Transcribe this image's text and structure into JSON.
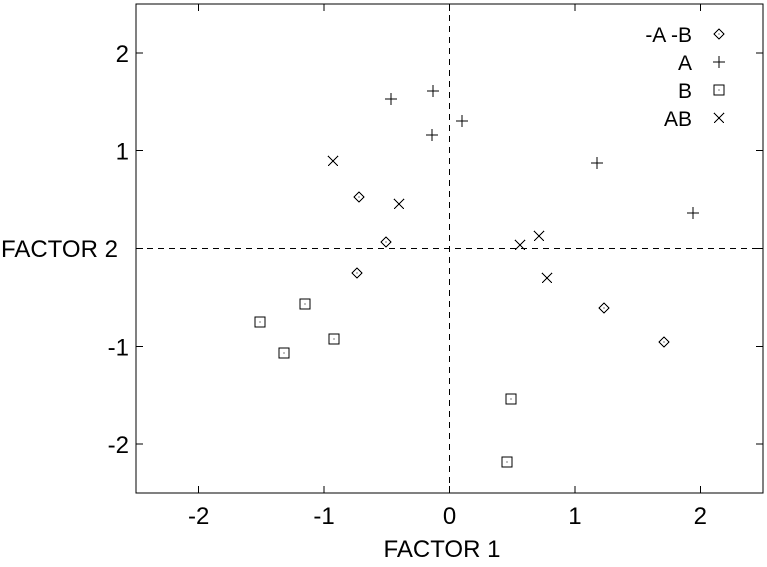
{
  "figure": {
    "background": "#ffffff",
    "foreground": "#000000"
  },
  "chart_data": {
    "type": "scatter",
    "title": "",
    "xlabel": "FACTOR 1",
    "ylabel": "FACTOR 2",
    "xlim": [
      -2.5,
      2.5
    ],
    "ylim": [
      -2.5,
      2.5
    ],
    "grid": false,
    "zero_lines": "dashed",
    "tick_style": "inward-mirrored-all-borders",
    "legend_position": "top-right-inside",
    "x_ticks": [
      {
        "value": -2,
        "label": "-2"
      },
      {
        "value": -1,
        "label": "-1"
      },
      {
        "value": 0,
        "label": "0"
      },
      {
        "value": 1,
        "label": "1"
      },
      {
        "value": 2,
        "label": "2"
      }
    ],
    "y_ticks": [
      {
        "value": -2,
        "label": "-2"
      },
      {
        "value": -1,
        "label": "-1"
      },
      {
        "value": 0,
        "label": ""
      },
      {
        "value": 1,
        "label": "1"
      },
      {
        "value": 2,
        "label": "2"
      }
    ],
    "series": [
      {
        "name": "-A -B",
        "marker": "diamond-dot",
        "points": [
          [
            -0.72,
            0.53
          ],
          [
            -0.51,
            0.07
          ],
          [
            -0.74,
            -0.25
          ],
          [
            1.23,
            -0.61
          ],
          [
            1.71,
            -0.96
          ]
        ]
      },
      {
        "name": "A",
        "marker": "plus",
        "points": [
          [
            -0.47,
            1.53
          ],
          [
            -0.13,
            1.61
          ],
          [
            -0.14,
            1.16
          ],
          [
            0.1,
            1.3
          ],
          [
            1.18,
            0.87
          ],
          [
            1.94,
            0.36
          ]
        ]
      },
      {
        "name": "B",
        "marker": "square-dot",
        "points": [
          [
            -1.15,
            -0.57
          ],
          [
            -1.51,
            -0.75
          ],
          [
            -0.92,
            -0.93
          ],
          [
            -1.32,
            -1.07
          ],
          [
            0.49,
            -1.54
          ],
          [
            0.46,
            -2.18
          ]
        ]
      },
      {
        "name": "AB",
        "marker": "cross",
        "points": [
          [
            -0.93,
            0.89
          ],
          [
            -0.4,
            0.45
          ],
          [
            0.56,
            0.04
          ],
          [
            0.71,
            0.13
          ],
          [
            0.78,
            -0.3
          ]
        ]
      }
    ]
  }
}
